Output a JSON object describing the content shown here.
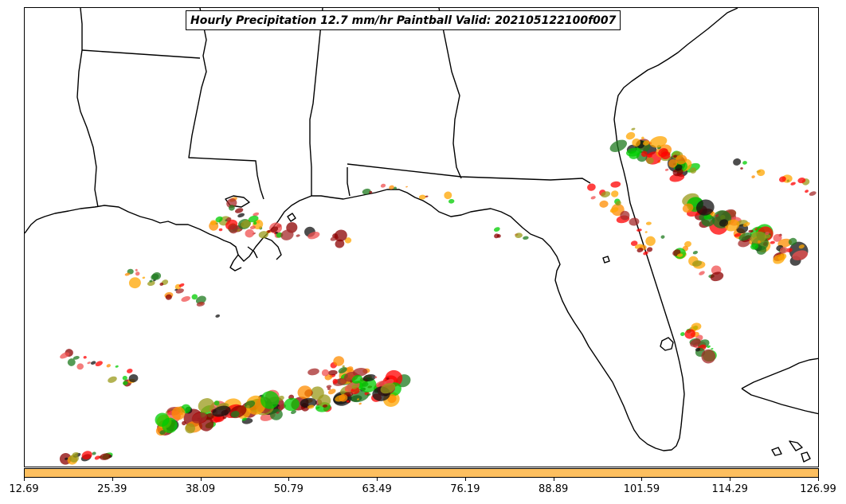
{
  "title": "Hourly Precipitation 12.7 mm/hr Paintball Valid: 202105122100f007",
  "colorbar": {
    "color": "#fdbf5f",
    "ticks": [
      "12.69",
      "25.39",
      "38.09",
      "50.79",
      "63.49",
      "76.19",
      "88.89",
      "101.59",
      "114.29",
      "126.99"
    ]
  },
  "palette": {
    "dark-red": "#8b0000",
    "red": "#ff0000",
    "light-red": "#f05050",
    "brown-red": "#a52a2a",
    "orange": "#ff8c00",
    "light-orange": "#ffa500",
    "olive": "#9a9a1a",
    "green": "#00cc00",
    "dark-green": "#1e7a1e",
    "black": "#111111"
  }
}
